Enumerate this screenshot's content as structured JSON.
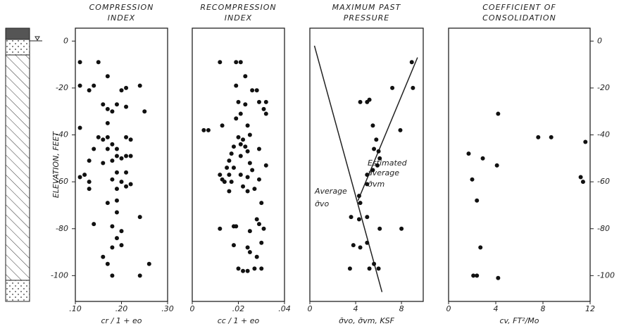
{
  "chart_data": [
    {
      "type": "scatter",
      "title": [
        "COMPRESSION",
        "INDEX"
      ],
      "xlabel": "cr / 1 + eo",
      "ylabel": "ELEVATION, FEET",
      "yaxis": "left",
      "xlim": [
        0.1,
        0.3
      ],
      "xticks": [
        {
          "value": 0.1,
          "label": ".10"
        },
        {
          "value": 0.2,
          "label": ".20"
        },
        {
          "value": 0.3,
          "label": ".30"
        }
      ],
      "ylim": [
        -111,
        5.5
      ],
      "yticks": [
        0,
        -20,
        -40,
        -60,
        -80,
        -100
      ],
      "series": [
        {
          "color": "#111",
          "x": [
            0.11,
            0.15,
            0.17,
            0.11,
            0.13,
            0.14,
            0.2,
            0.21,
            0.24,
            0.19,
            0.21,
            0.16,
            0.17,
            0.25,
            0.18,
            0.17,
            0.15,
            0.16,
            0.17,
            0.18,
            0.21,
            0.22,
            0.11,
            0.19,
            0.19,
            0.2,
            0.21,
            0.14,
            0.17,
            0.16,
            0.18,
            0.22,
            0.13,
            0.19,
            0.21,
            0.12,
            0.11,
            0.13,
            0.18,
            0.2,
            0.22,
            0.21,
            0.13,
            0.19,
            0.19,
            0.17,
            0.19,
            0.14,
            0.18,
            0.24,
            0.2,
            0.19,
            0.2,
            0.18,
            0.16,
            0.17,
            0.26,
            0.18,
            0.24
          ],
          "y": [
            -9,
            -9,
            -15,
            -19,
            -21,
            -19,
            -21,
            -20,
            -19,
            -27,
            -28,
            -27,
            -29,
            -30,
            -30,
            -35,
            -41,
            -42,
            -41,
            -44,
            -41,
            -42,
            -37,
            -46,
            -49,
            -50,
            -49,
            -46,
            -46,
            -52,
            -51,
            -49,
            -51,
            -56,
            -56,
            -57,
            -58,
            -60,
            -59,
            -60,
            -61,
            -62,
            -63,
            -63,
            -68,
            -69,
            -73,
            -78,
            -79,
            -75,
            -81,
            -84,
            -87,
            -88,
            -92,
            -95,
            -95,
            -100,
            -100
          ]
        }
      ]
    },
    {
      "type": "scatter",
      "title": [
        "RECOMPRESSION",
        "INDEX"
      ],
      "xlabel": "cc / 1 + eo",
      "yaxis": "none",
      "xlim": [
        0,
        0.04
      ],
      "xticks": [
        0,
        {
          "value": 0.02,
          "label": ".02"
        },
        {
          "value": 0.04,
          "label": ".04"
        }
      ],
      "ylim": [
        -111,
        5.5
      ],
      "series": [
        {
          "color": "#111",
          "x": [
            0.012,
            0.019,
            0.021,
            0.023,
            0.019,
            0.026,
            0.028,
            0.02,
            0.023,
            0.029,
            0.032,
            0.031,
            0.032,
            0.019,
            0.021,
            0.013,
            0.024,
            0.005,
            0.007,
            0.02,
            0.022,
            0.025,
            0.018,
            0.021,
            0.023,
            0.017,
            0.016,
            0.021,
            0.024,
            0.029,
            0.015,
            0.018,
            0.025,
            0.026,
            0.032,
            0.012,
            0.016,
            0.013,
            0.014,
            0.017,
            0.021,
            0.024,
            0.029,
            0.022,
            0.024,
            0.027,
            0.016,
            0.03,
            0.028,
            0.029,
            0.012,
            0.018,
            0.019,
            0.025,
            0.031,
            0.018,
            0.024,
            0.03,
            0.028,
            0.025,
            0.02,
            0.022,
            0.024,
            0.027,
            0.03
          ],
          "y": [
            -9,
            -9,
            -9,
            -15,
            -19,
            -21,
            -21,
            -26,
            -27,
            -26,
            -26,
            -29,
            -31,
            -33,
            -31,
            -36,
            -36,
            -38,
            -38,
            -41,
            -42,
            -40,
            -45,
            -44,
            -45,
            -48,
            -51,
            -49,
            -47,
            -46,
            -54,
            -54,
            -52,
            -55,
            -53,
            -57,
            -57,
            -59,
            -60,
            -60,
            -57,
            -58,
            -59,
            -62,
            -64,
            -63,
            -64,
            -69,
            -76,
            -78,
            -80,
            -79,
            -79,
            -81,
            -80,
            -87,
            -88,
            -86,
            -92,
            -90,
            -97,
            -98,
            -98,
            -97,
            -97
          ]
        }
      ]
    },
    {
      "type": "scatter",
      "title": [
        "MAXIMUM PAST",
        "PRESSURE"
      ],
      "xlabel": "σ̄vo, σ̄vm, KSF",
      "yaxis": "none",
      "xlim": [
        0,
        9.9
      ],
      "xticks": [
        0,
        4,
        8
      ],
      "ylim": [
        -111,
        5.5
      ],
      "annotations": [
        "Estimated",
        "average",
        "σ̄vm",
        "Average",
        "σ̄vo"
      ],
      "lines": [
        {
          "x": [
            0.4,
            6.3
          ],
          "y": [
            -2,
            -107
          ]
        },
        {
          "x": [
            9.4,
            4.2
          ],
          "y": [
            -7,
            -68
          ]
        }
      ],
      "series": [
        {
          "color": "#111",
          "x": [
            8.9,
            7.2,
            9.0,
            5.2,
            4.4,
            5.0,
            5.5,
            5.8,
            7.9,
            5.6,
            6.0,
            6.1,
            5.9,
            5.5,
            5.0,
            5.0,
            4.3,
            4.4,
            3.6,
            4.3,
            5.0,
            6.1,
            8.0,
            3.8,
            4.4,
            5.0,
            5.6,
            6.0,
            3.5,
            5.2
          ],
          "y": [
            -9,
            -20,
            -20,
            -25,
            -26,
            -26,
            -36,
            -42,
            -38,
            -46,
            -47,
            -50,
            -53,
            -55,
            -57,
            -61,
            -66,
            -69,
            -75,
            -76,
            -75,
            -80,
            -80,
            -87,
            -88,
            -86,
            -95,
            -97,
            -97,
            -97
          ]
        }
      ]
    },
    {
      "type": "scatter",
      "title": [
        "COEFFICIENT  OF",
        "CONSOLIDATION"
      ],
      "xlabel": "cv, FT²/Mo",
      "yaxis": "right",
      "xlim": [
        0,
        12
      ],
      "xticks": [
        0,
        4,
        8,
        12
      ],
      "ylim": [
        -111,
        5.5
      ],
      "yticks": [
        0,
        -20,
        -40,
        -60,
        -80,
        -100
      ],
      "series": [
        {
          "color": "#111",
          "x": [
            4.2,
            7.6,
            8.7,
            11.6,
            1.7,
            2.9,
            4.1,
            2.0,
            11.2,
            11.4,
            2.4,
            2.7,
            2.1,
            2.4,
            4.2
          ],
          "y": [
            -31,
            -41,
            -41,
            -43,
            -48,
            -50,
            -53,
            -59,
            -58,
            -60,
            -68,
            -88,
            -100,
            -100,
            -101
          ]
        }
      ]
    }
  ]
}
